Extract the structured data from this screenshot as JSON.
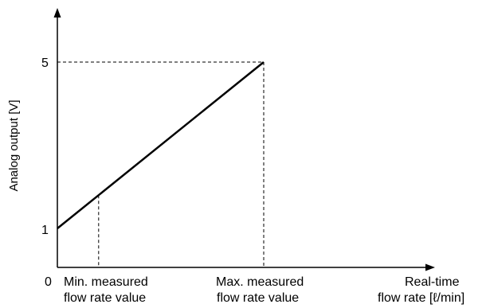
{
  "chart_data": {
    "type": "line",
    "title": "",
    "xlabel": "Real-time flow rate [ℓ/min]",
    "xlabel_lines": [
      "Real-time",
      "flow rate [ℓ/min]"
    ],
    "ylabel": "Analog output [V]",
    "x_origin_label": "0",
    "y_ticks": [
      {
        "value": 1,
        "label": "1"
      },
      {
        "value": 5,
        "label": "5"
      }
    ],
    "x_markers": [
      {
        "key": "min",
        "label_lines": [
          "Min. measured",
          "flow rate value"
        ],
        "x": 0.2,
        "y": 1.8
      },
      {
        "key": "max",
        "label_lines": [
          "Max. measured",
          "flow rate value"
        ],
        "x": 1.0,
        "y": 5
      }
    ],
    "series": [
      {
        "x": [
          0,
          1.0
        ],
        "y": [
          1,
          5
        ]
      }
    ],
    "xlim": [
      0,
      1.5
    ],
    "ylim": [
      0,
      6.0
    ],
    "grid": false,
    "dashed_guides": true,
    "colors": {
      "axis": "#000000",
      "line": "#000000",
      "guides": "#000000"
    }
  }
}
